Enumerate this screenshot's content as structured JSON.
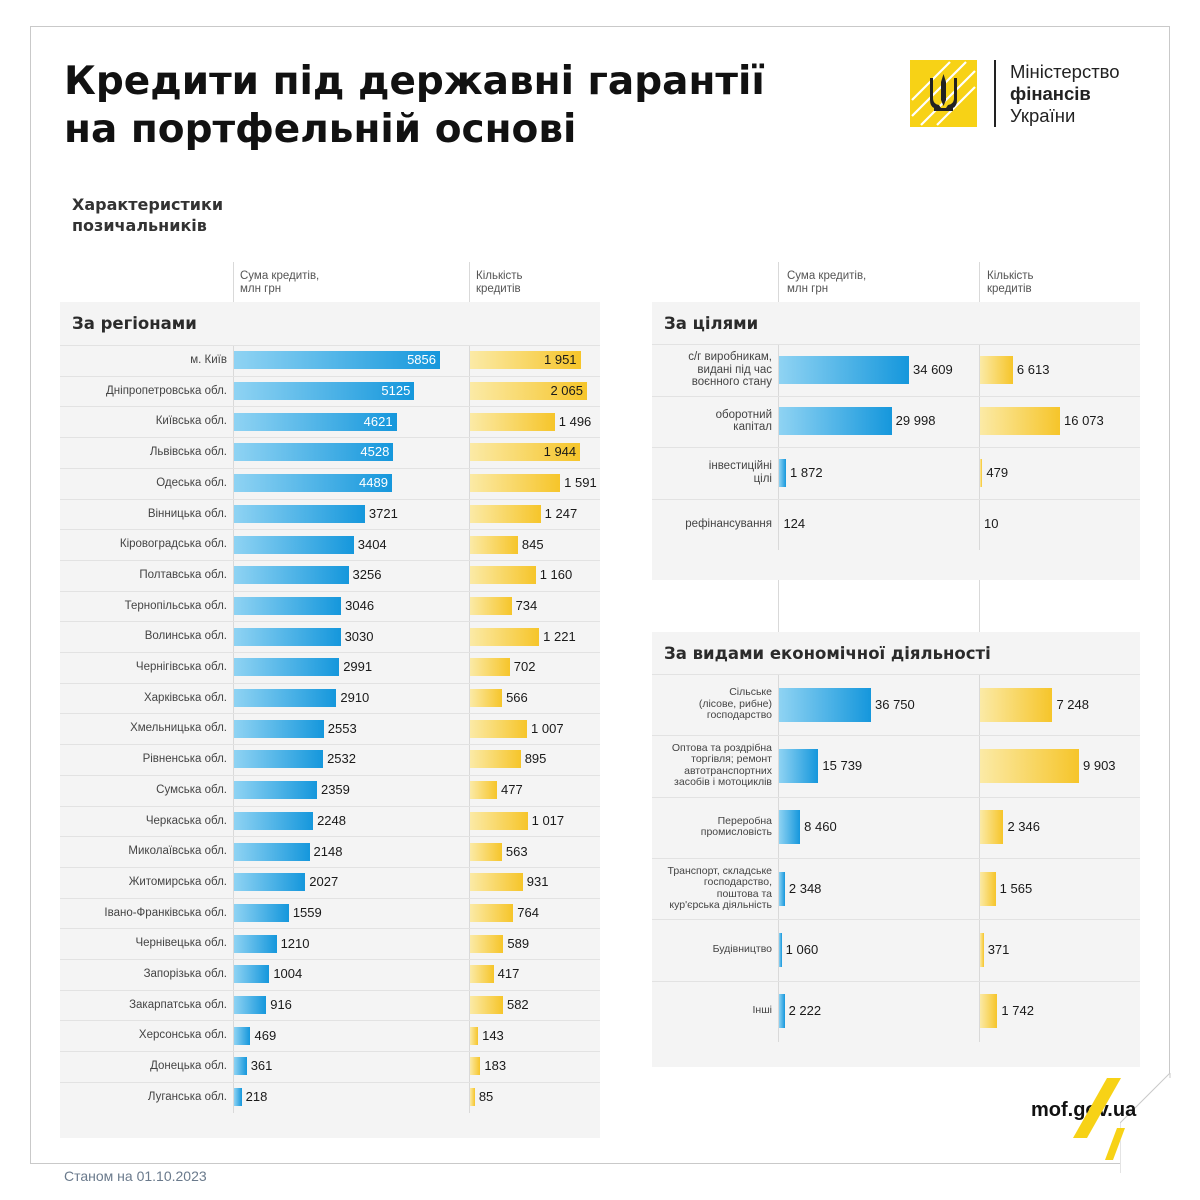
{
  "title_lines": [
    "Кредити під державні гарантії",
    "на портфельній основі"
  ],
  "logo": {
    "line1": "Міністерство",
    "line2": "фінансів",
    "line3": "України",
    "icon": "trident-emblem-icon"
  },
  "subtitle_lines": [
    "Характеристики",
    "позичальників"
  ],
  "column_headers": {
    "sum": [
      "Сума кредитів,",
      "млн грн"
    ],
    "count": [
      "Кількість",
      "кредитів"
    ]
  },
  "colors": {
    "blue": "#1597dc",
    "yellow": "#f6c52a",
    "panel": "#f4f4f4"
  },
  "chart_data": [
    {
      "type": "bar",
      "title": "За регіонами",
      "categories": [
        "м. Київ",
        "Дніпропетровська обл.",
        "Київська обл.",
        "Львівська обл.",
        "Одеська обл.",
        "Вінницька обл.",
        "Кіровоградська обл.",
        "Полтавська обл.",
        "Тернопільська обл.",
        "Волинська обл.",
        "Чернігівська обл.",
        "Харківська обл.",
        "Хмельницька обл.",
        "Рівненська обл.",
        "Сумська обл.",
        "Черкаська обл.",
        "Миколаївська обл.",
        "Житомирська обл.",
        "Івано-Франківська обл.",
        "Чернівецька обл.",
        "Запорізька обл.",
        "Закарпатська обл.",
        "Херсонська обл.",
        "Донецька обл.",
        "Луганська обл."
      ],
      "series": [
        {
          "name": "Сума кредитів, млн грн",
          "values": [
            5856,
            5125,
            4621,
            4528,
            4489,
            3721,
            3404,
            3256,
            3046,
            3030,
            2991,
            2910,
            2553,
            2532,
            2359,
            2248,
            2148,
            2027,
            1559,
            1210,
            1004,
            916,
            469,
            361,
            218
          ],
          "labels": [
            "5856",
            "5125",
            "4621",
            "4528",
            "4489",
            "3721",
            "3404",
            "3256",
            "3046",
            "3030",
            "2991",
            "2910",
            "2553",
            "2532",
            "2359",
            "2248",
            "2148",
            "2027",
            "1559",
            "1210",
            "1004",
            "916",
            "469",
            "361",
            "218"
          ]
        },
        {
          "name": "Кількість кредитів",
          "values": [
            1951,
            2065,
            1496,
            1944,
            1591,
            1247,
            845,
            1160,
            734,
            1221,
            702,
            566,
            1007,
            895,
            477,
            1017,
            563,
            931,
            764,
            589,
            417,
            582,
            143,
            183,
            85
          ],
          "labels": [
            "1 951",
            "2 065",
            "1 496",
            "1 944",
            "1 591",
            "1 247",
            "845",
            "1 160",
            "734",
            "1 221",
            "702",
            "566",
            "1 007",
            "895",
            "477",
            "1 017",
            "563",
            "931",
            "764",
            "589",
            "417",
            "582",
            "143",
            "183",
            "85"
          ]
        }
      ]
    },
    {
      "type": "bar",
      "title": "За цілями",
      "categories": [
        "с/г виробникам, видані під час воєнного стану",
        "оборотний капітал",
        "інвестиційні цілі",
        "рефінансування"
      ],
      "series": [
        {
          "name": "Сума кредитів, млн грн",
          "values": [
            34609,
            29998,
            1872,
            124
          ],
          "labels": [
            "34 609",
            "29 998",
            "1 872",
            "124"
          ]
        },
        {
          "name": "Кількість кредитів",
          "values": [
            6613,
            16073,
            479,
            10
          ],
          "labels": [
            "6 613",
            "16 073",
            "479",
            "10"
          ]
        }
      ]
    },
    {
      "type": "bar",
      "title": "За видами економічної діяльності",
      "categories": [
        "Сільське (лісове, рибне) господарство",
        "Оптова та роздрібна торгівля; ремонт автотранспортних засобів і мотоциклів",
        "Переробна промисловість",
        "Транспорт, складське господарство, поштова та кур'єрська діяльність",
        "Будівництво",
        "Інші"
      ],
      "series": [
        {
          "name": "Сума кредитів, млн грн",
          "values": [
            36750,
            15739,
            8460,
            2348,
            1060,
            2222
          ],
          "labels": [
            "36 750",
            "15 739",
            "8 460",
            "2 348",
            "1 060",
            "2 222"
          ]
        },
        {
          "name": "Кількість кредитів",
          "values": [
            7248,
            9903,
            2346,
            1565,
            371,
            1742
          ],
          "labels": [
            "7 248",
            "9 903",
            "2 346",
            "1 565",
            "371",
            "1 742"
          ]
        }
      ]
    }
  ],
  "footer": {
    "url": "mof.gov.ua",
    "date": "Станом на 01.10.2023"
  }
}
